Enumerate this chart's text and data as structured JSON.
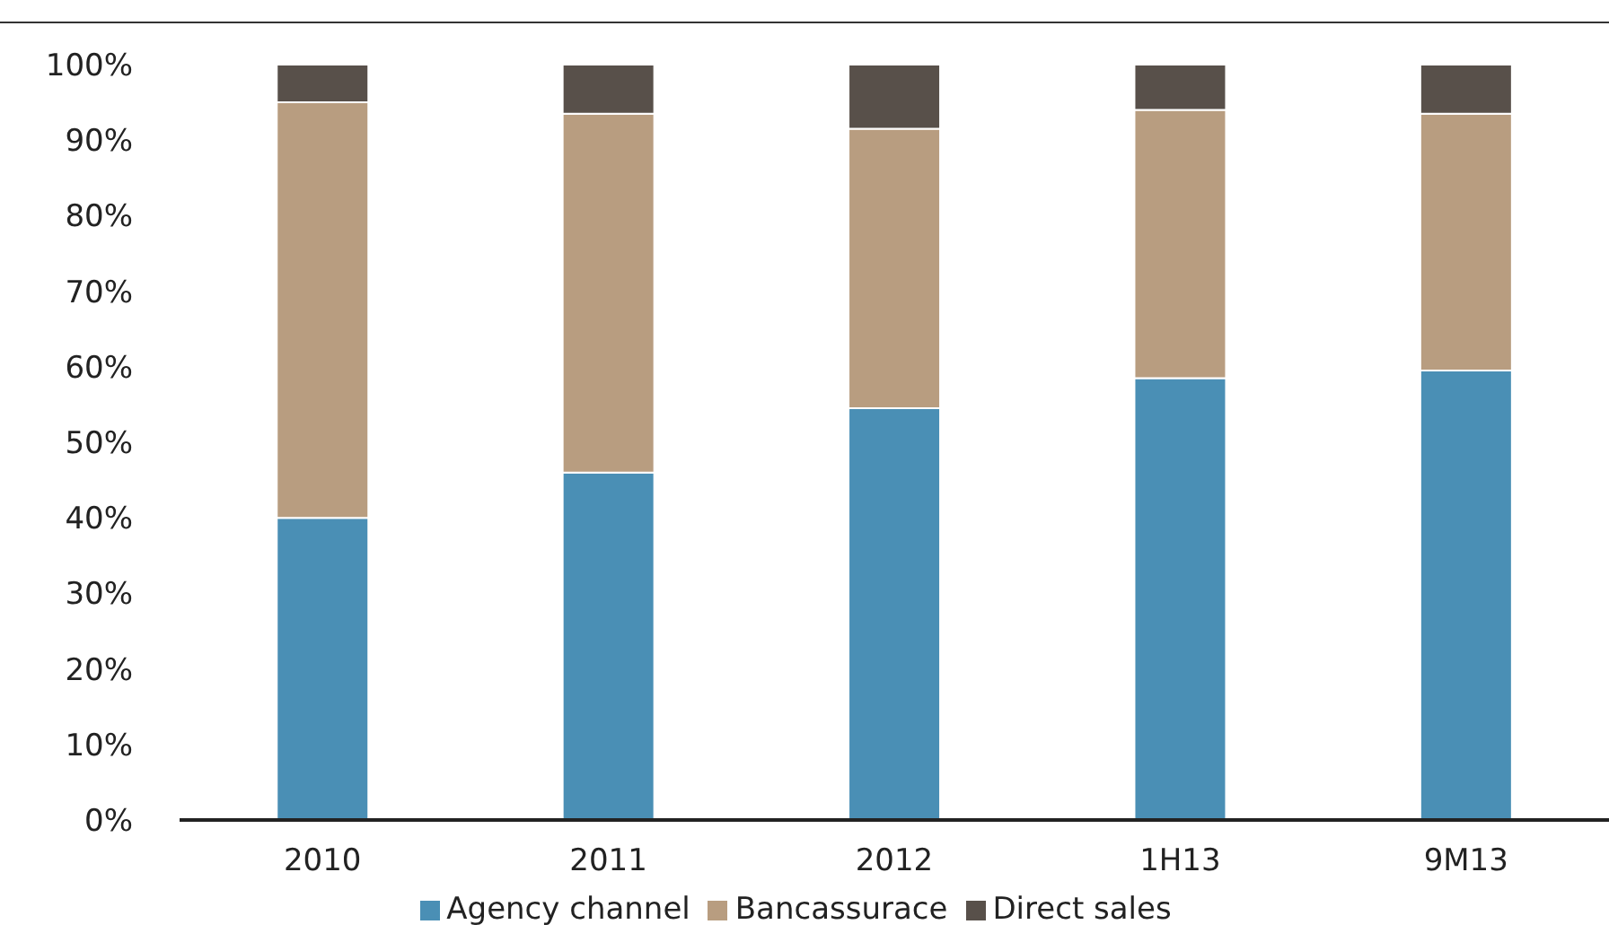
{
  "chart_data": {
    "type": "bar",
    "stacked": true,
    "categories": [
      "2010",
      "2011",
      "2012",
      "1H13",
      "9M13"
    ],
    "series": [
      {
        "name": "Agency channel",
        "color": "#4a8fb5",
        "values": [
          40,
          46,
          54.5,
          58.5,
          59.5
        ]
      },
      {
        "name": "Bancassurace",
        "color": "#b89d80",
        "values": [
          55,
          47.5,
          37,
          35.5,
          34
        ]
      },
      {
        "name": "Direct sales",
        "color": "#58504a",
        "values": [
          5,
          6.5,
          8.5,
          6,
          6.5
        ]
      }
    ],
    "ylim": [
      0,
      100
    ],
    "yticks": [
      {
        "value": 0,
        "label": "0%"
      },
      {
        "value": 10,
        "label": "10%"
      },
      {
        "value": 20,
        "label": "20%"
      },
      {
        "value": 30,
        "label": "30%"
      },
      {
        "value": 40,
        "label": "40%"
      },
      {
        "value": 50,
        "label": "50%"
      },
      {
        "value": 60,
        "label": "60%"
      },
      {
        "value": 70,
        "label": "70%"
      },
      {
        "value": 80,
        "label": "80%"
      },
      {
        "value": 90,
        "label": "90%"
      },
      {
        "value": 100,
        "label": "100%"
      }
    ],
    "grid": false,
    "legend": "bottom"
  }
}
